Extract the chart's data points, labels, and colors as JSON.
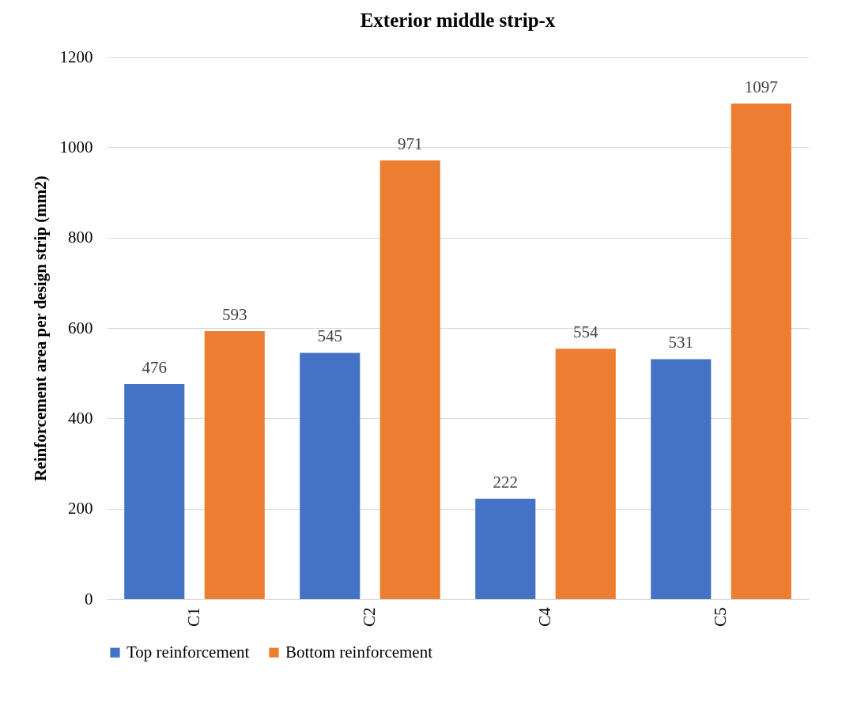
{
  "chart_data": {
    "type": "bar",
    "title": "Exterior middle strip-x",
    "ylabel": "Reinforcement area per design strip (mm2)",
    "categories": [
      "C1",
      "C2",
      "C4",
      "C5"
    ],
    "series": [
      {
        "name": "Top reinforcement",
        "color": "#4472c4",
        "values": [
          476,
          545,
          222,
          531
        ]
      },
      {
        "name": "Bottom reinforcement",
        "color": "#ed7d31",
        "values": [
          593,
          971,
          554,
          1097
        ]
      }
    ],
    "ylim": [
      0,
      1200
    ],
    "yticks": [
      0,
      200,
      400,
      600,
      800,
      1000,
      1200
    ],
    "grid": "y",
    "legend": "bottom",
    "data_labels": true
  }
}
